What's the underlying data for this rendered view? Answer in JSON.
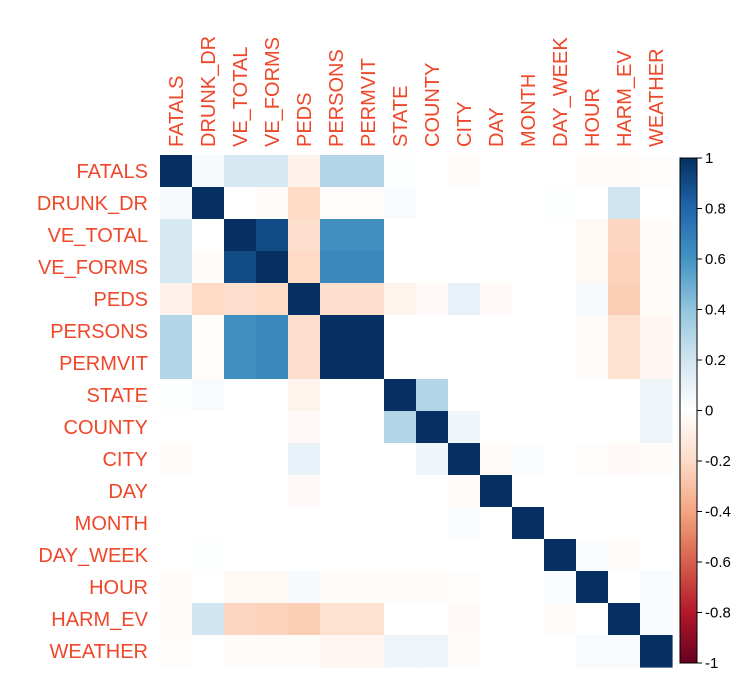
{
  "chart_data": {
    "type": "heatmap",
    "title": "",
    "labels": [
      "FATALS",
      "DRUNK_DR",
      "VE_TOTAL",
      "VE_FORMS",
      "PEDS",
      "PERSONS",
      "PERMVIT",
      "STATE",
      "COUNTY",
      "CITY",
      "DAY",
      "MONTH",
      "DAY_WEEK",
      "HOUR",
      "HARM_EV",
      "WEATHER"
    ],
    "values": [
      [
        1.0,
        0.04,
        0.18,
        0.18,
        -0.07,
        0.3,
        0.3,
        0.01,
        0.0,
        -0.02,
        0.0,
        0.0,
        0.0,
        -0.02,
        -0.02,
        -0.01
      ],
      [
        0.04,
        1.0,
        0.0,
        -0.02,
        -0.2,
        -0.01,
        -0.01,
        0.03,
        0.0,
        0.0,
        0.0,
        0.0,
        0.01,
        0.0,
        0.2,
        0.0
      ],
      [
        0.18,
        0.0,
        1.0,
        0.9,
        -0.18,
        0.62,
        0.62,
        0.0,
        0.0,
        0.0,
        0.0,
        0.0,
        0.0,
        -0.04,
        -0.22,
        -0.02
      ],
      [
        0.18,
        -0.02,
        0.9,
        1.0,
        -0.2,
        0.65,
        0.65,
        0.0,
        0.0,
        0.0,
        0.0,
        0.0,
        0.0,
        -0.04,
        -0.23,
        -0.02
      ],
      [
        -0.07,
        -0.2,
        -0.18,
        -0.2,
        1.0,
        -0.18,
        -0.18,
        -0.06,
        -0.03,
        0.1,
        -0.03,
        0.0,
        0.0,
        0.04,
        -0.25,
        -0.02
      ],
      [
        0.3,
        -0.01,
        0.62,
        0.65,
        -0.18,
        1.0,
        1.0,
        0.0,
        0.0,
        0.0,
        0.0,
        0.0,
        0.0,
        -0.02,
        -0.16,
        -0.05
      ],
      [
        0.3,
        -0.01,
        0.62,
        0.65,
        -0.18,
        1.0,
        1.0,
        0.0,
        0.0,
        0.0,
        0.0,
        0.0,
        0.0,
        -0.02,
        -0.16,
        -0.05
      ],
      [
        0.01,
        0.03,
        0.0,
        0.0,
        -0.06,
        0.0,
        0.0,
        1.0,
        0.3,
        0.0,
        0.0,
        0.0,
        0.0,
        0.0,
        0.0,
        0.08
      ],
      [
        0.0,
        0.0,
        0.0,
        0.0,
        -0.03,
        0.0,
        0.0,
        0.3,
        1.0,
        0.07,
        0.0,
        0.0,
        0.0,
        0.0,
        0.0,
        0.08
      ],
      [
        -0.02,
        0.0,
        0.0,
        0.0,
        0.1,
        0.0,
        0.0,
        0.0,
        0.07,
        1.0,
        -0.02,
        0.02,
        0.0,
        -0.01,
        -0.03,
        -0.02
      ],
      [
        0.0,
        0.0,
        0.0,
        0.0,
        -0.03,
        0.0,
        0.0,
        0.0,
        0.0,
        -0.02,
        1.0,
        0.0,
        0.0,
        0.0,
        0.0,
        0.0
      ],
      [
        0.0,
        0.0,
        0.0,
        0.0,
        0.0,
        0.0,
        0.0,
        0.0,
        0.0,
        0.02,
        0.0,
        1.0,
        0.0,
        0.0,
        0.0,
        0.0
      ],
      [
        0.0,
        0.01,
        0.0,
        0.0,
        0.0,
        0.0,
        0.0,
        0.0,
        0.0,
        0.0,
        0.0,
        0.0,
        1.0,
        0.02,
        -0.02,
        0.0
      ],
      [
        -0.02,
        0.0,
        -0.04,
        -0.04,
        0.04,
        -0.02,
        -0.02,
        -0.02,
        -0.02,
        -0.01,
        0.0,
        0.0,
        0.02,
        1.0,
        0.0,
        0.03
      ],
      [
        -0.02,
        0.2,
        -0.22,
        -0.23,
        -0.25,
        -0.16,
        -0.16,
        0.0,
        0.0,
        -0.03,
        0.0,
        0.0,
        -0.02,
        0.0,
        1.0,
        0.03
      ],
      [
        -0.01,
        0.0,
        -0.02,
        -0.02,
        -0.02,
        -0.05,
        -0.05,
        0.08,
        0.08,
        -0.02,
        0.0,
        0.0,
        0.0,
        0.03,
        0.03,
        1.0
      ]
    ],
    "colorbar": {
      "ticks": [
        "1",
        "0.8",
        "0.6",
        "0.4",
        "0.2",
        "0",
        "-0.2",
        "-0.4",
        "-0.6",
        "-0.8",
        "-1"
      ],
      "range": [
        -1,
        1
      ],
      "palette_positive": [
        "#ffffff",
        "#d1e5f0",
        "#92c5de",
        "#4393c3",
        "#2166ac",
        "#053061"
      ],
      "palette_negative": [
        "#ffffff",
        "#fddbc7",
        "#f4a582",
        "#d6604d",
        "#b2182b",
        "#67001f"
      ]
    },
    "label_color": "#f0472a",
    "grid": false,
    "legend_placement": "right"
  }
}
